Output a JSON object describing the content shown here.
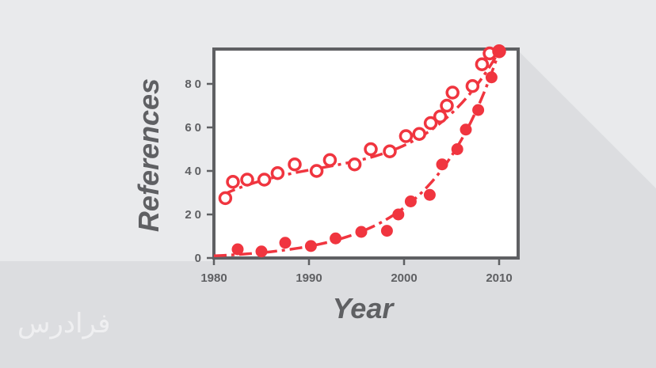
{
  "chart_data": {
    "type": "scatter",
    "xlabel": "Year",
    "ylabel": "References",
    "xlim": [
      1980,
      2012
    ],
    "ylim": [
      0,
      96
    ],
    "xticks": [
      1980,
      1990,
      2000,
      2010
    ],
    "yticks": [
      0,
      20,
      40,
      60,
      80
    ],
    "grid": false,
    "series": [
      {
        "marker": "open-circle",
        "color": "#f0353f",
        "x": [
          1981.2,
          1982.0,
          1983.5,
          1985.3,
          1986.7,
          1988.5,
          1990.8,
          1992.2,
          1994.8,
          1996.5,
          1998.5,
          2000.2,
          2001.6,
          2002.8,
          2003.8,
          2004.5,
          2005.1,
          2007.2,
          2008.2,
          2009.0,
          2010.0
        ],
        "y": [
          27.5,
          35,
          36,
          36,
          39,
          43,
          40,
          45,
          43,
          50,
          49,
          56,
          57,
          62,
          65,
          70,
          76,
          79,
          89,
          94,
          95
        ]
      },
      {
        "marker": "filled-circle",
        "color": "#f0353f",
        "x": [
          1982.5,
          1985.0,
          1987.5,
          1990.2,
          1992.8,
          1995.5,
          1998.2,
          1999.4,
          2000.7,
          2002.7,
          2004.0,
          2005.6,
          2006.5,
          2007.8,
          2009.2,
          2010.0
        ],
        "y": [
          4,
          3,
          7,
          5.5,
          9,
          12,
          12.5,
          20,
          26,
          29,
          43,
          50,
          59,
          68,
          83,
          95
        ]
      }
    ]
  },
  "watermark": "فرادرس"
}
